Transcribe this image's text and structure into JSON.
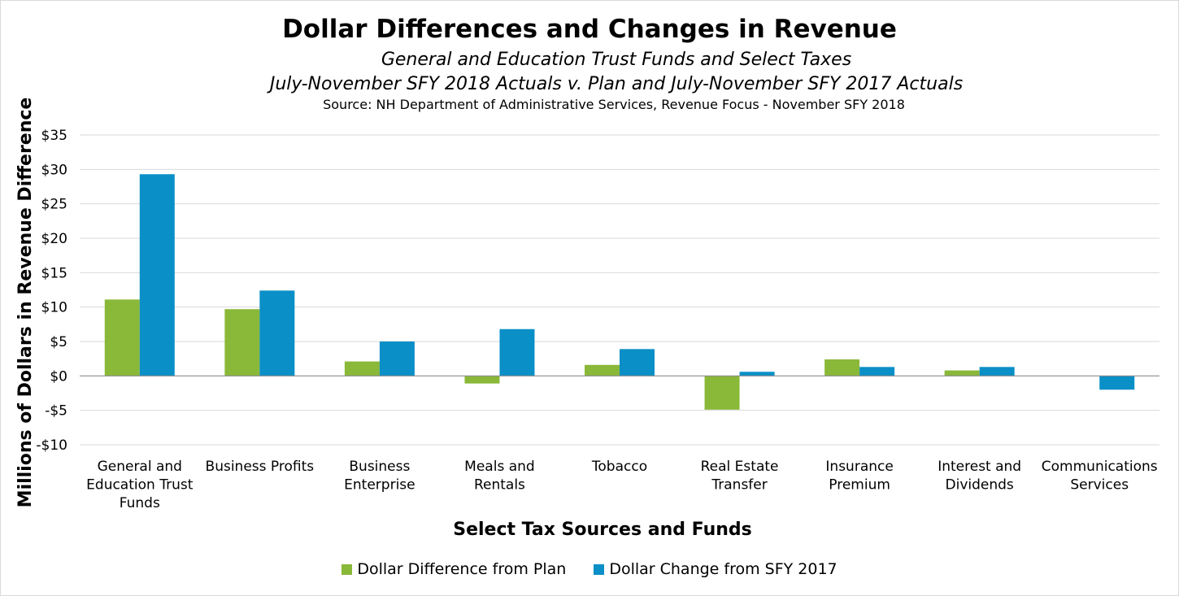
{
  "chart_data": {
    "type": "bar",
    "title": "Dollar Differences and Changes in Revenue",
    "subtitle_1": "General and Education Trust Funds and Select Taxes",
    "subtitle_2": "July-November SFY 2018 Actuals v. Plan and July-November SFY 2017 Actuals",
    "source": "Source: NH Department of Administrative Services, Revenue Focus - November SFY 2018",
    "xlabel": "Select Tax Sources and Funds",
    "ylabel": "Millions of Dollars in Revenue Difference",
    "ylim": [
      -10,
      35
    ],
    "yticks": [
      35,
      30,
      25,
      20,
      15,
      10,
      5,
      0,
      -5,
      -10
    ],
    "ytick_labels": [
      "$35",
      "$30",
      "$25",
      "$20",
      "$15",
      "$10",
      "$5",
      "$0",
      "-$5",
      "-$10"
    ],
    "grid": true,
    "legend_position": "bottom",
    "categories": [
      [
        "General and",
        "Education Trust",
        "Funds"
      ],
      [
        "Business Profits"
      ],
      [
        "Business",
        "Enterprise"
      ],
      [
        "Meals and",
        "Rentals"
      ],
      [
        "Tobacco"
      ],
      [
        "Real Estate",
        "Transfer"
      ],
      [
        "Insurance",
        "Premium"
      ],
      [
        "Interest and",
        "Dividends"
      ],
      [
        "Communications",
        "Services"
      ]
    ],
    "series": [
      {
        "name": "Dollar Difference from Plan",
        "color": "#8ab839",
        "values": [
          11.1,
          9.7,
          2.1,
          -1.1,
          1.6,
          -4.9,
          2.4,
          0.8,
          0.0
        ]
      },
      {
        "name": "Dollar Change from SFY 2017",
        "color": "#0a8fc7",
        "values": [
          29.3,
          12.4,
          5.0,
          6.8,
          3.9,
          0.6,
          1.3,
          1.3,
          -2.0
        ]
      }
    ]
  }
}
